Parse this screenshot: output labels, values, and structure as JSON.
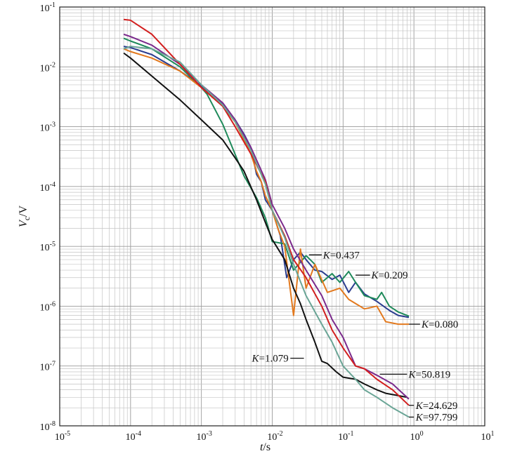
{
  "chart_data": {
    "type": "line",
    "xscale": "log",
    "yscale": "log",
    "xlim": [
      1e-05,
      10
    ],
    "ylim": [
      1e-08,
      0.1
    ],
    "grid": true,
    "xlabel": {
      "italic": "t",
      "rest": "/s"
    },
    "ylabel": {
      "italic": "V",
      "sub": "c",
      "rest": "/V"
    },
    "x_tick_labels": [
      {
        "base": "10",
        "exp": "-5"
      },
      {
        "base": "10",
        "exp": "-4"
      },
      {
        "base": "10",
        "exp": "-3"
      },
      {
        "base": "10",
        "exp": "-2"
      },
      {
        "base": "10",
        "exp": "-1"
      },
      {
        "base": "10",
        "exp": "0"
      },
      {
        "base": "10",
        "exp": "1"
      }
    ],
    "y_tick_labels": [
      {
        "base": "10",
        "exp": "-8"
      },
      {
        "base": "10",
        "exp": "-7"
      },
      {
        "base": "10",
        "exp": "-6"
      },
      {
        "base": "10",
        "exp": "-5"
      },
      {
        "base": "10",
        "exp": "-4"
      },
      {
        "base": "10",
        "exp": "-3"
      },
      {
        "base": "10",
        "exp": "-2"
      },
      {
        "base": "10",
        "exp": "-1"
      }
    ],
    "series": [
      {
        "name": "K=0.437",
        "label": {
          "italic": "K",
          "rest": "=0.437"
        },
        "color": "#2b3d8f",
        "points": [
          [
            8e-05,
            0.022
          ],
          [
            0.0001,
            0.021
          ],
          [
            0.0002,
            0.016
          ],
          [
            0.0005,
            0.0085
          ],
          [
            0.001,
            0.0048
          ],
          [
            0.002,
            0.0024
          ],
          [
            0.003,
            0.0013
          ],
          [
            0.004,
            0.00075
          ],
          [
            0.005,
            0.00045
          ],
          [
            0.006,
            0.00016
          ],
          [
            0.007,
            0.00012
          ],
          [
            0.008,
            6e-05
          ],
          [
            0.01,
            4e-05
          ],
          [
            0.013,
            1.5e-05
          ],
          [
            0.016,
            3e-06
          ],
          [
            0.02,
            6e-06
          ],
          [
            0.025,
            8e-06
          ],
          [
            0.03,
            6e-06
          ],
          [
            0.04,
            4e-06
          ],
          [
            0.05,
            3.8e-06
          ],
          [
            0.07,
            2.8e-06
          ],
          [
            0.09,
            3.3e-06
          ],
          [
            0.12,
            1.7e-06
          ],
          [
            0.15,
            2.5e-06
          ],
          [
            0.2,
            1.6e-06
          ],
          [
            0.3,
            1.2e-06
          ],
          [
            0.45,
            8.5e-07
          ],
          [
            0.6,
            7e-07
          ],
          [
            0.85,
            6.5e-07
          ]
        ]
      },
      {
        "name": "K=0.209",
        "label": {
          "italic": "K",
          "rest": "=0.209"
        },
        "color": "#1e8a5a",
        "points": [
          [
            8e-05,
            0.03
          ],
          [
            0.0001,
            0.027
          ],
          [
            0.0002,
            0.02
          ],
          [
            0.0005,
            0.01
          ],
          [
            0.001,
            0.0045
          ],
          [
            0.0012,
            0.0035
          ],
          [
            0.002,
            0.0011
          ],
          [
            0.004,
            0.00015
          ],
          [
            0.006,
            6.5e-05
          ],
          [
            0.008,
            3e-05
          ],
          [
            0.01,
            1.2e-05
          ],
          [
            0.015,
            1.1e-05
          ],
          [
            0.02,
            4e-06
          ],
          [
            0.03,
            7e-06
          ],
          [
            0.04,
            5e-06
          ],
          [
            0.05,
            2.5e-06
          ],
          [
            0.07,
            3.5e-06
          ],
          [
            0.09,
            2.5e-06
          ],
          [
            0.12,
            3.8e-06
          ],
          [
            0.15,
            2.5e-06
          ],
          [
            0.2,
            1.5e-06
          ],
          [
            0.3,
            1.3e-06
          ],
          [
            0.35,
            1.7e-06
          ],
          [
            0.45,
            1e-06
          ],
          [
            0.6,
            8e-07
          ],
          [
            0.85,
            6.8e-07
          ]
        ]
      },
      {
        "name": "K=0.080",
        "label": {
          "italic": "K",
          "rest": "=0.080"
        },
        "color": "#e2791e",
        "points": [
          [
            8e-05,
            0.02
          ],
          [
            0.0001,
            0.018
          ],
          [
            0.0002,
            0.014
          ],
          [
            0.0005,
            0.0085
          ],
          [
            0.001,
            0.0045
          ],
          [
            0.002,
            0.0022
          ],
          [
            0.003,
            0.0012
          ],
          [
            0.004,
            0.0006
          ],
          [
            0.005,
            0.00035
          ],
          [
            0.006,
            0.00018
          ],
          [
            0.007,
            0.00012
          ],
          [
            0.008,
            7e-05
          ],
          [
            0.01,
            4e-05
          ],
          [
            0.012,
            2e-05
          ],
          [
            0.015,
            1e-05
          ],
          [
            0.02,
            7e-07
          ],
          [
            0.025,
            9e-06
          ],
          [
            0.03,
            2e-06
          ],
          [
            0.04,
            5e-06
          ],
          [
            0.06,
            1.7e-06
          ],
          [
            0.09,
            2e-06
          ],
          [
            0.12,
            1.3e-06
          ],
          [
            0.2,
            9e-07
          ],
          [
            0.3,
            1e-06
          ],
          [
            0.4,
            5.5e-07
          ],
          [
            0.6,
            5e-07
          ],
          [
            0.85,
            5e-07
          ]
        ]
      },
      {
        "name": "K=1.079",
        "label": {
          "italic": "K",
          "rest": "=1.079"
        },
        "color": "#111111",
        "points": [
          [
            8e-05,
            0.017
          ],
          [
            0.0001,
            0.014
          ],
          [
            0.0002,
            0.007
          ],
          [
            0.0005,
            0.0028
          ],
          [
            0.001,
            0.0013
          ],
          [
            0.002,
            0.0006
          ],
          [
            0.003,
            0.0003
          ],
          [
            0.004,
            0.00018
          ],
          [
            0.006,
            6e-05
          ],
          [
            0.008,
            2.5e-05
          ],
          [
            0.01,
            1.3e-05
          ],
          [
            0.015,
            6e-06
          ],
          [
            0.02,
            2e-06
          ],
          [
            0.025,
            1.1e-06
          ],
          [
            0.03,
            6e-07
          ],
          [
            0.04,
            2.5e-07
          ],
          [
            0.05,
            1.2e-07
          ],
          [
            0.06,
            1.1e-07
          ],
          [
            0.08,
            8e-08
          ],
          [
            0.1,
            6.5e-08
          ],
          [
            0.15,
            6e-08
          ],
          [
            0.2,
            5e-08
          ],
          [
            0.3,
            4e-08
          ],
          [
            0.4,
            3.5e-08
          ],
          [
            0.6,
            3.2e-08
          ],
          [
            0.8,
            3e-08
          ]
        ]
      },
      {
        "name": "K=50.819",
        "label": {
          "italic": "K",
          "rest": "=50.819"
        },
        "color": "#7b2a8c",
        "points": [
          [
            8e-05,
            0.035
          ],
          [
            0.0001,
            0.032
          ],
          [
            0.0002,
            0.023
          ],
          [
            0.0005,
            0.011
          ],
          [
            0.001,
            0.005
          ],
          [
            0.002,
            0.0025
          ],
          [
            0.003,
            0.0013
          ],
          [
            0.005,
            0.00045
          ],
          [
            0.008,
            0.00013
          ],
          [
            0.01,
            5e-05
          ],
          [
            0.015,
            2e-05
          ],
          [
            0.02,
            9e-06
          ],
          [
            0.03,
            4e-06
          ],
          [
            0.05,
            1.5e-06
          ],
          [
            0.07,
            6e-07
          ],
          [
            0.1,
            3e-07
          ],
          [
            0.15,
            1e-07
          ],
          [
            0.2,
            9e-08
          ],
          [
            0.3,
            7e-08
          ],
          [
            0.5,
            5e-08
          ],
          [
            0.85,
            2.8e-08
          ]
        ]
      },
      {
        "name": "K=24.629",
        "label": {
          "italic": "K",
          "rest": "=24.629"
        },
        "color": "#d21f1f",
        "points": [
          [
            8e-05,
            0.062
          ],
          [
            0.0001,
            0.06
          ],
          [
            0.0002,
            0.035
          ],
          [
            0.0005,
            0.011
          ],
          [
            0.001,
            0.0045
          ],
          [
            0.002,
            0.0022
          ],
          [
            0.003,
            0.001
          ],
          [
            0.005,
            0.00035
          ],
          [
            0.008,
            0.00012
          ],
          [
            0.01,
            4e-05
          ],
          [
            0.015,
            1.5e-05
          ],
          [
            0.02,
            6e-06
          ],
          [
            0.03,
            3e-06
          ],
          [
            0.05,
            1e-06
          ],
          [
            0.07,
            4e-07
          ],
          [
            0.1,
            2e-07
          ],
          [
            0.15,
            1e-07
          ],
          [
            0.2,
            9e-08
          ],
          [
            0.3,
            6e-08
          ],
          [
            0.5,
            4e-08
          ],
          [
            0.85,
            2.2e-08
          ]
        ]
      },
      {
        "name": "K=97.799",
        "label": {
          "italic": "K",
          "rest": "=97.799"
        },
        "color": "#6aa596",
        "points": [
          [
            8e-05,
            0.02
          ],
          [
            0.0001,
            0.022
          ],
          [
            0.0002,
            0.02
          ],
          [
            0.0005,
            0.012
          ],
          [
            0.001,
            0.005
          ],
          [
            0.002,
            0.0023
          ],
          [
            0.003,
            0.0012
          ],
          [
            0.005,
            0.0004
          ],
          [
            0.008,
            0.00011
          ],
          [
            0.01,
            4e-05
          ],
          [
            0.015,
            1.4e-05
          ],
          [
            0.02,
            5e-06
          ],
          [
            0.03,
            1.5e-06
          ],
          [
            0.05,
            5e-07
          ],
          [
            0.07,
            2.5e-07
          ],
          [
            0.1,
            1e-07
          ],
          [
            0.15,
            6e-08
          ],
          [
            0.2,
            4e-08
          ],
          [
            0.3,
            3e-08
          ],
          [
            0.5,
            2e-08
          ],
          [
            0.85,
            1.4e-08
          ]
        ]
      }
    ]
  }
}
